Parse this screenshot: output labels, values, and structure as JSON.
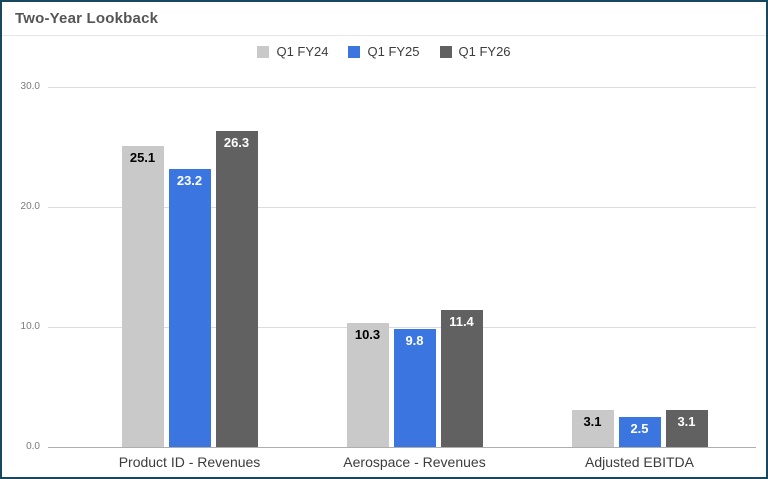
{
  "chart_data": {
    "type": "bar",
    "title": "Two-Year Lookback",
    "categories": [
      "Product ID - Revenues",
      "Aerospace - Revenues",
      "Adjusted EBITDA"
    ],
    "series": [
      {
        "name": "Q1 FY24",
        "color": "#c9c9c9",
        "label_color": "#000000",
        "values": [
          25.1,
          10.3,
          3.1
        ]
      },
      {
        "name": "Q1 FY25",
        "color": "#3a75e0",
        "label_color": "#ffffff",
        "values": [
          23.2,
          9.8,
          2.5
        ]
      },
      {
        "name": "Q1 FY26",
        "color": "#616161",
        "label_color": "#ffffff",
        "values": [
          26.3,
          11.4,
          3.1
        ]
      }
    ],
    "y_axis": {
      "min": 0,
      "max": 30,
      "tick_step": 10,
      "tick_labels": [
        "0.0",
        "10.0",
        "20.0",
        "30.0"
      ]
    },
    "grid": true,
    "legend_position": "top",
    "value_label_position": "inside-end",
    "frame_border_color": "#17485f",
    "title_color": "#555555"
  }
}
